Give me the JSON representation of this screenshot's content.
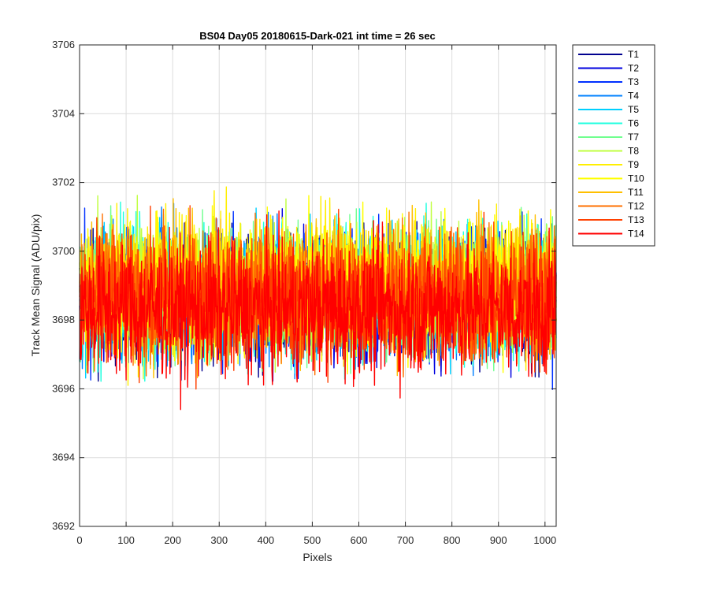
{
  "chart_data": {
    "type": "line",
    "title": "BS04 Day05 20180615-Dark-021 int time = 26 sec",
    "xlabel": "Pixels",
    "ylabel": "Track Mean Signal (ADU/pix)",
    "xlim": [
      0,
      1024
    ],
    "ylim": [
      3692,
      3706
    ],
    "x_ticks": [
      "0",
      "100",
      "200",
      "300",
      "400",
      "500",
      "600",
      "700",
      "800",
      "900",
      "1000"
    ],
    "y_ticks": [
      "3692",
      "3694",
      "3696",
      "3698",
      "3700",
      "3702",
      "3704",
      "3706"
    ],
    "grid": true,
    "legend_placement": "outside-right",
    "n_points": 1024,
    "series": [
      {
        "name": "T1",
        "color": "#00008F",
        "mean": 3698.6,
        "spread": 1.5
      },
      {
        "name": "T2",
        "color": "#0000DF",
        "mean": 3698.6,
        "spread": 1.5
      },
      {
        "name": "T3",
        "color": "#0030FF",
        "mean": 3698.7,
        "spread": 1.5
      },
      {
        "name": "T4",
        "color": "#0080FF",
        "mean": 3698.7,
        "spread": 1.5
      },
      {
        "name": "T5",
        "color": "#00D0FF",
        "mean": 3698.8,
        "spread": 1.5
      },
      {
        "name": "T6",
        "color": "#20FFDF",
        "mean": 3698.8,
        "spread": 1.6
      },
      {
        "name": "T7",
        "color": "#70FF8F",
        "mean": 3698.9,
        "spread": 1.6
      },
      {
        "name": "T8",
        "color": "#C0FF40",
        "mean": 3698.9,
        "spread": 1.6
      },
      {
        "name": "T9",
        "color": "#FFEF00",
        "mean": 3699.0,
        "spread": 1.6
      },
      {
        "name": "T10",
        "color": "#FFFF00",
        "mean": 3699.0,
        "spread": 1.6
      },
      {
        "name": "T11",
        "color": "#FFBF00",
        "mean": 3698.9,
        "spread": 1.6
      },
      {
        "name": "T12",
        "color": "#FF7000",
        "mean": 3698.8,
        "spread": 1.6
      },
      {
        "name": "T13",
        "color": "#FF4000",
        "mean": 3698.6,
        "spread": 1.6
      },
      {
        "name": "T14",
        "color": "#FF0000",
        "mean": 3698.3,
        "spread": 1.6
      }
    ]
  }
}
